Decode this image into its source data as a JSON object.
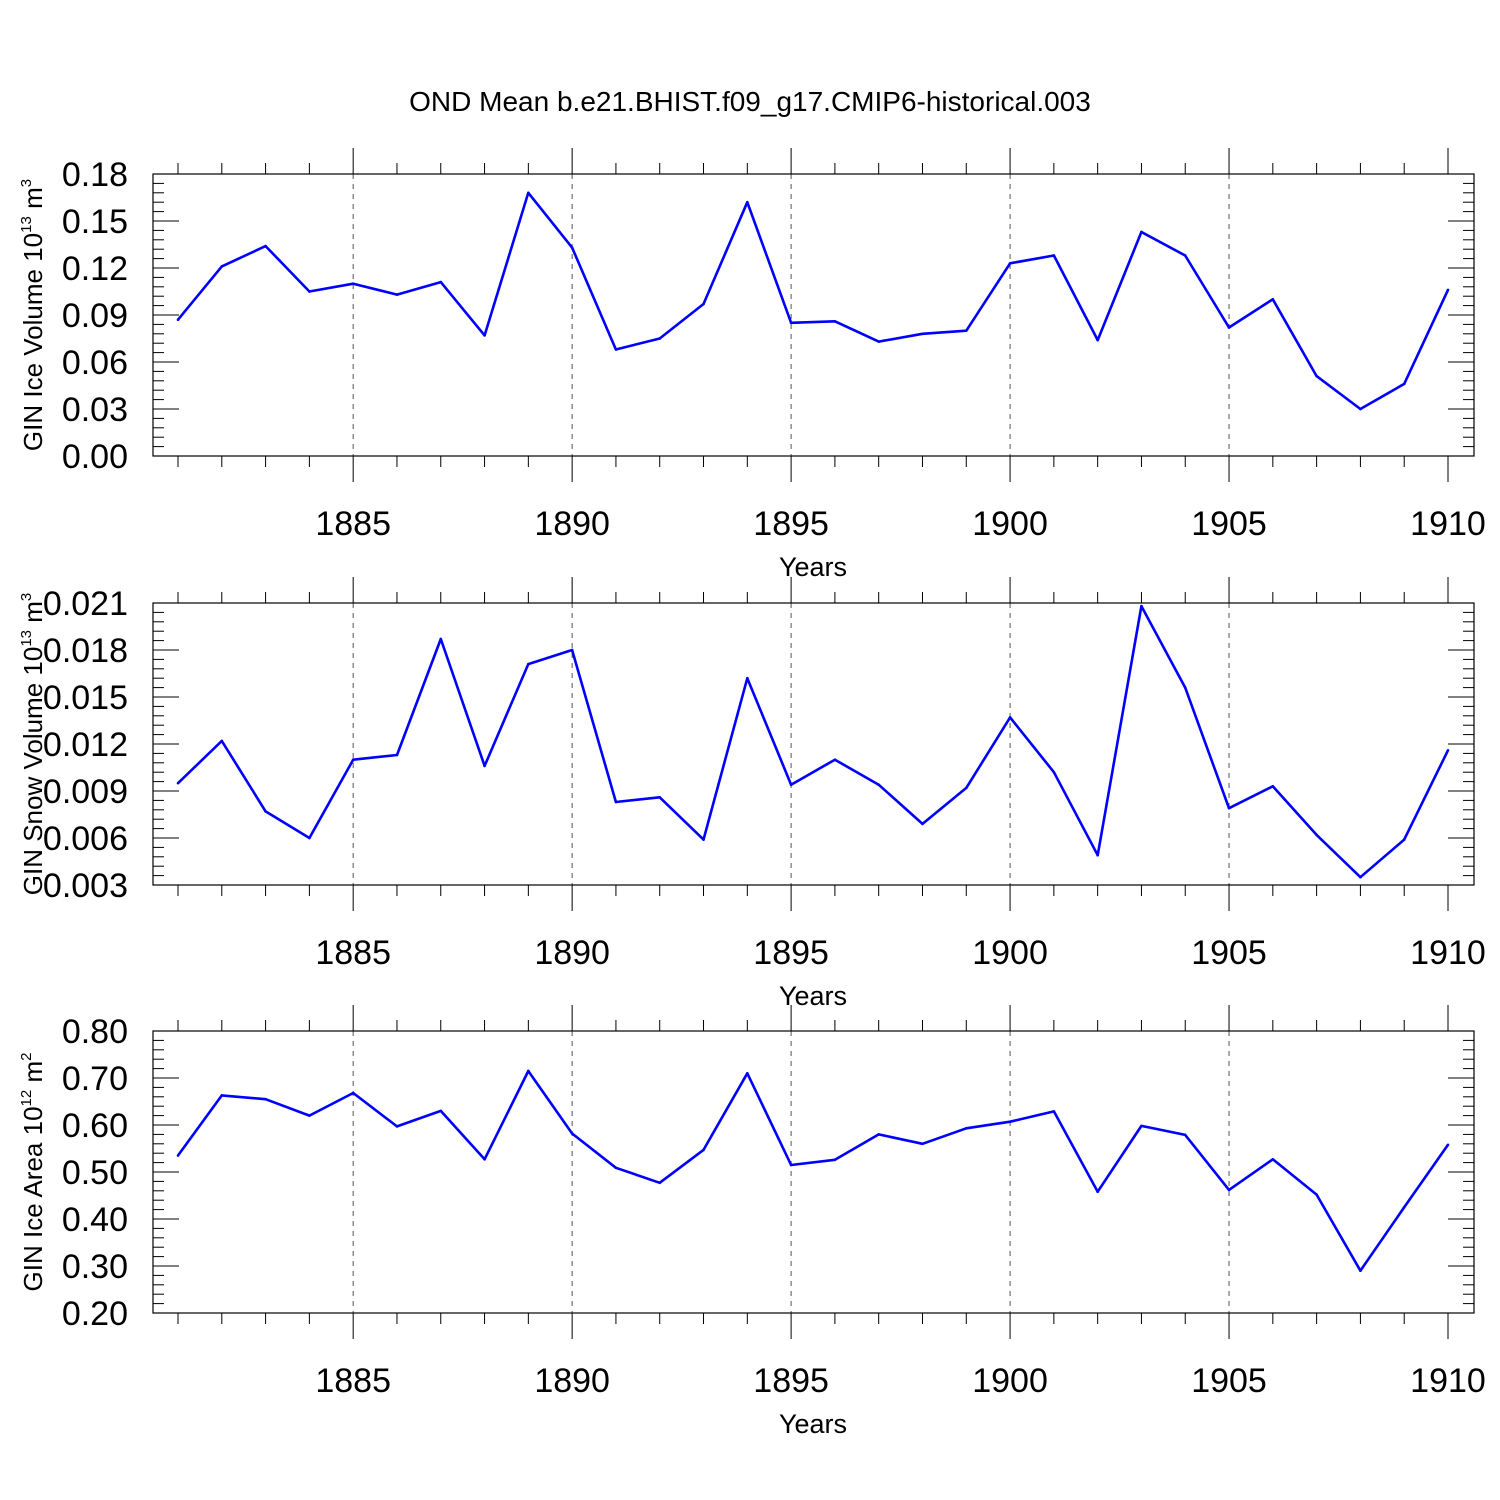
{
  "figure": {
    "title": "OND Mean b.e21.BHIST.f09_g17.CMIP6-historical.003"
  },
  "chart_data": [
    {
      "type": "line",
      "title": "OND Mean b.e21.BHIST.f09_g17.CMIP6-historical.003",
      "xlabel": "Years",
      "ylabel": {
        "main": "GIN Ice Volume 10",
        "exp": "13",
        "unit": " m",
        "unit_exp": "3"
      },
      "xlim": [
        1881,
        1910
      ],
      "ylim": [
        0.0,
        0.18
      ],
      "x_ticks": [
        1885,
        1890,
        1895,
        1900,
        1905,
        1910
      ],
      "y_ticks": [
        "0.00",
        "0.03",
        "0.06",
        "0.09",
        "0.12",
        "0.15",
        "0.18"
      ],
      "grid": "vertical dashed at major x ticks",
      "color": "#0000ff",
      "x": [
        1881,
        1882,
        1883,
        1884,
        1885,
        1886,
        1887,
        1888,
        1889,
        1890,
        1891,
        1892,
        1893,
        1894,
        1895,
        1896,
        1897,
        1898,
        1899,
        1900,
        1901,
        1902,
        1903,
        1904,
        1905,
        1906,
        1907,
        1908,
        1909,
        1910
      ],
      "values": [
        0.087,
        0.121,
        0.134,
        0.105,
        0.11,
        0.103,
        0.111,
        0.077,
        0.168,
        0.133,
        0.068,
        0.075,
        0.097,
        0.162,
        0.085,
        0.086,
        0.073,
        0.078,
        0.08,
        0.123,
        0.128,
        0.074,
        0.143,
        0.128,
        0.082,
        0.1,
        0.051,
        0.03,
        0.046,
        0.106
      ]
    },
    {
      "type": "line",
      "xlabel": "Years",
      "ylabel": {
        "main": "GIN Snow Volume 10",
        "exp": "13",
        "unit": " m",
        "unit_exp": "3"
      },
      "xlim": [
        1881,
        1910
      ],
      "ylim": [
        0.003,
        0.021
      ],
      "x_ticks": [
        1885,
        1890,
        1895,
        1900,
        1905,
        1910
      ],
      "y_ticks": [
        "0.003",
        "0.006",
        "0.009",
        "0.012",
        "0.015",
        "0.018",
        "0.021"
      ],
      "grid": "vertical dashed at major x ticks",
      "color": "#0000ff",
      "x": [
        1881,
        1882,
        1883,
        1884,
        1885,
        1886,
        1887,
        1888,
        1889,
        1890,
        1891,
        1892,
        1893,
        1894,
        1895,
        1896,
        1897,
        1898,
        1899,
        1900,
        1901,
        1902,
        1903,
        1904,
        1905,
        1906,
        1907,
        1908,
        1909,
        1910
      ],
      "values": [
        0.0095,
        0.0122,
        0.0077,
        0.006,
        0.011,
        0.0113,
        0.0187,
        0.0106,
        0.0171,
        0.018,
        0.0083,
        0.0086,
        0.0059,
        0.0162,
        0.0094,
        0.011,
        0.0094,
        0.0069,
        0.0092,
        0.0137,
        0.0102,
        0.0049,
        0.0208,
        0.0156,
        0.0079,
        0.0093,
        0.0062,
        0.0035,
        0.0059,
        0.0116
      ]
    },
    {
      "type": "line",
      "xlabel": "Years",
      "ylabel": {
        "main": "GIN Ice Area 10",
        "exp": "12",
        "unit": " m",
        "unit_exp": "2"
      },
      "xlim": [
        1881,
        1910
      ],
      "ylim": [
        0.2,
        0.8
      ],
      "x_ticks": [
        1885,
        1890,
        1895,
        1900,
        1905,
        1910
      ],
      "y_ticks": [
        "0.20",
        "0.30",
        "0.40",
        "0.50",
        "0.60",
        "0.70",
        "0.80"
      ],
      "grid": "vertical dashed at major x ticks",
      "color": "#0000ff",
      "x": [
        1881,
        1882,
        1883,
        1884,
        1885,
        1886,
        1887,
        1888,
        1889,
        1890,
        1891,
        1892,
        1893,
        1894,
        1895,
        1896,
        1897,
        1898,
        1899,
        1900,
        1901,
        1902,
        1903,
        1904,
        1905,
        1906,
        1907,
        1908,
        1909,
        1910
      ],
      "values": [
        0.535,
        0.663,
        0.655,
        0.62,
        0.668,
        0.597,
        0.63,
        0.527,
        0.715,
        0.582,
        0.509,
        0.477,
        0.547,
        0.71,
        0.515,
        0.526,
        0.58,
        0.56,
        0.593,
        0.607,
        0.629,
        0.458,
        0.598,
        0.579,
        0.462,
        0.527,
        0.452,
        0.29,
        0.425,
        0.558
      ]
    }
  ]
}
